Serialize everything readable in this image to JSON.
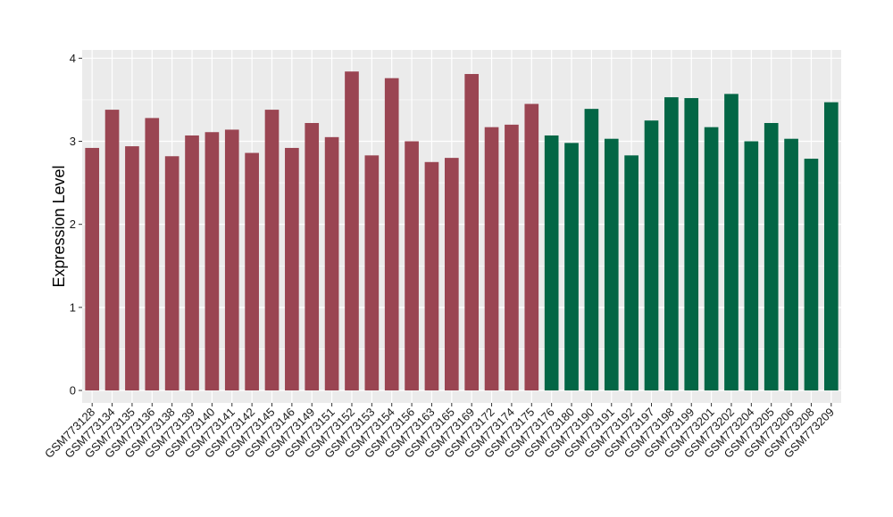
{
  "chart_data": {
    "type": "bar",
    "title": "",
    "xlabel": "",
    "ylabel": "Expression Level",
    "ylim": [
      -0.15,
      4.1
    ],
    "yticks": [
      0,
      1,
      2,
      3,
      4
    ],
    "grid": true,
    "legend": "none",
    "colors": {
      "group1": "#9a4552",
      "group2": "#036645",
      "panel": "#ebebeb",
      "gridline": "#ffffff"
    },
    "categories": [
      "GSM773128",
      "GSM773134",
      "GSM773135",
      "GSM773136",
      "GSM773138",
      "GSM773139",
      "GSM773140",
      "GSM773141",
      "GSM773142",
      "GSM773145",
      "GSM773146",
      "GSM773149",
      "GSM773151",
      "GSM773152",
      "GSM773153",
      "GSM773154",
      "GSM773156",
      "GSM773163",
      "GSM773165",
      "GSM773169",
      "GSM773172",
      "GSM773174",
      "GSM773175",
      "GSM773176",
      "GSM773180",
      "GSM773190",
      "GSM773191",
      "GSM773192",
      "GSM773197",
      "GSM773198",
      "GSM773199",
      "GSM773201",
      "GSM773202",
      "GSM773204",
      "GSM773205",
      "GSM773206",
      "GSM773208",
      "GSM773209"
    ],
    "values": [
      2.92,
      3.38,
      2.94,
      3.28,
      2.82,
      3.07,
      3.11,
      3.14,
      2.86,
      3.38,
      2.92,
      3.22,
      3.05,
      3.84,
      2.83,
      3.76,
      3.0,
      2.75,
      2.8,
      3.81,
      3.17,
      3.2,
      3.45,
      3.07,
      2.98,
      3.39,
      3.03,
      2.83,
      3.25,
      3.53,
      3.52,
      3.17,
      3.57,
      3.0,
      3.22,
      3.03,
      2.79,
      3.47
    ],
    "groups": [
      1,
      1,
      1,
      1,
      1,
      1,
      1,
      1,
      1,
      1,
      1,
      1,
      1,
      1,
      1,
      1,
      1,
      1,
      1,
      1,
      1,
      1,
      1,
      2,
      2,
      2,
      2,
      2,
      2,
      2,
      2,
      2,
      2,
      2,
      2,
      2,
      2,
      2
    ]
  }
}
